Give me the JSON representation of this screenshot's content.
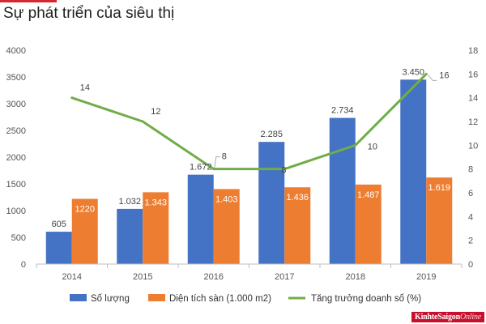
{
  "title": "Sự phát triển của siêu thị",
  "watermark": {
    "main": "KinhteSaigon",
    "accent": "Online"
  },
  "colors": {
    "count_bar": "#4472c4",
    "area_bar": "#ed7d31",
    "growth_line": "#70ad47",
    "accent": "#d7282f"
  },
  "chart_data": {
    "type": "bar",
    "categories": [
      "2014",
      "2015",
      "2016",
      "2017",
      "2018",
      "2019"
    ],
    "series": [
      {
        "name": "Số lượng",
        "type": "bar",
        "axis": "left",
        "values": [
          605,
          1032,
          1672,
          2285,
          2734,
          3450
        ],
        "labels": [
          "605",
          "1.032",
          "1.672",
          "2.285",
          "2.734",
          "3.450"
        ]
      },
      {
        "name": "Diện tích sàn (1.000 m2)",
        "type": "bar",
        "axis": "left",
        "values": [
          1220,
          1343,
          1403,
          1436,
          1487,
          1619
        ],
        "labels": [
          "1220",
          "1.343",
          "1.403",
          "1.436",
          "1.487",
          "1.619"
        ]
      },
      {
        "name": "Tăng trưởng doanh số (%)",
        "type": "line",
        "axis": "right",
        "values": [
          14,
          12,
          8,
          8,
          10,
          16
        ],
        "labels": [
          "14",
          "12",
          "8",
          "8",
          "10",
          "16"
        ]
      }
    ],
    "y_left": {
      "range": [
        0,
        4000
      ],
      "ticks": [
        "0",
        "500",
        "1000",
        "1500",
        "2000",
        "2500",
        "3000",
        "3500",
        "4000"
      ]
    },
    "y_right": {
      "range": [
        0,
        18
      ],
      "ticks": [
        "0",
        "2",
        "4",
        "6",
        "8",
        "10",
        "12",
        "14",
        "16",
        "18"
      ]
    },
    "grid": false,
    "legend_position": "bottom"
  }
}
